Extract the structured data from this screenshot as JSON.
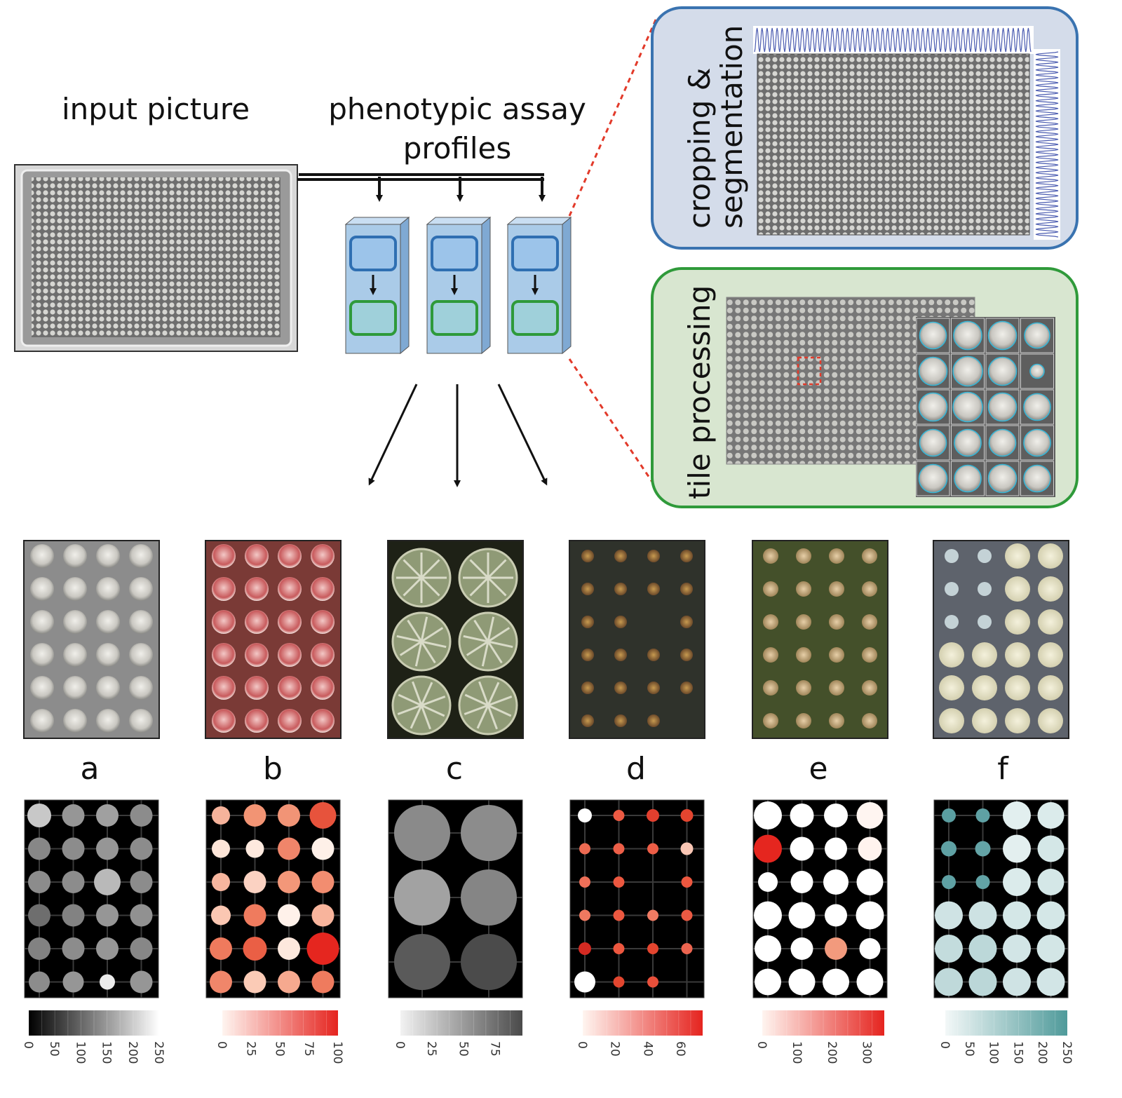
{
  "titles": {
    "input": "input picture",
    "profiles_line1": "phenotypic assay",
    "profiles_line2": "profiles"
  },
  "steps": {
    "segmentation_line1": "cropping &",
    "segmentation_line2": "segmentation",
    "tiles": "tile processing"
  },
  "colors": {
    "segmentation_border": "#3a73b0",
    "segmentation_fill": "#d4dcea",
    "tiles_border": "#2f9a3a",
    "tiles_fill": "#d8e6d0",
    "leader": "#e23a2a",
    "module_box": "#aacbe8",
    "module_top_box": "#2f6fb2",
    "module_bottom_box": "#2e9a3a"
  },
  "panels": [
    {
      "letter": "a",
      "ticks": [
        "0",
        "50",
        "100",
        "150",
        "200",
        "250"
      ]
    },
    {
      "letter": "b",
      "ticks": [
        "0",
        "25",
        "50",
        "75",
        "100"
      ]
    },
    {
      "letter": "c",
      "ticks": [
        "0",
        "25",
        "50",
        "75"
      ]
    },
    {
      "letter": "d",
      "ticks": [
        "0",
        "20",
        "40",
        "60"
      ]
    },
    {
      "letter": "e",
      "ticks": [
        "0",
        "100",
        "200",
        "300"
      ]
    },
    {
      "letter": "f",
      "ticks": [
        "0",
        "50",
        "100",
        "150",
        "200",
        "250"
      ]
    }
  ]
}
